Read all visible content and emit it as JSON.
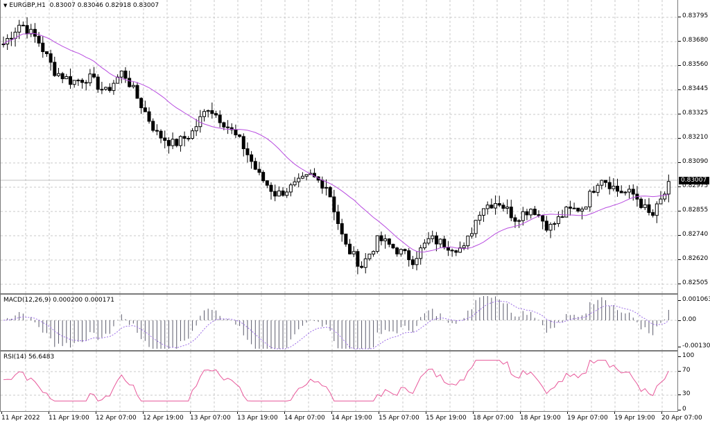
{
  "header": {
    "symbol_timeframe": "EURGBP,H1",
    "open": "0.83007",
    "high": "0.83046",
    "low": "0.82918",
    "close": "0.83007",
    "collapse_icon": "triangle-down-icon"
  },
  "price_scale": {
    "labels": [
      "0.83795",
      "0.83680",
      "0.83560",
      "0.83445",
      "0.83325",
      "0.83210",
      "0.83090",
      "0.82975",
      "0.82855",
      "0.82740",
      "0.82620",
      "0.82505"
    ],
    "current_price": "0.83007"
  },
  "macd": {
    "legend": "MACD(12,26,9) 0.000200 0.000171",
    "scale": [
      "0.001063",
      "0.00",
      "-0.001303"
    ]
  },
  "rsi": {
    "legend": "RSI(14) 56.6483",
    "scale": [
      "100",
      "70",
      "30",
      "0"
    ]
  },
  "time_axis": {
    "labels": [
      "11 Apr 2022",
      "11 Apr 19:00",
      "12 Apr 07:00",
      "12 Apr 19:00",
      "13 Apr 07:00",
      "13 Apr 19:00",
      "14 Apr 07:00",
      "14 Apr 19:00",
      "15 Apr 07:00",
      "15 Apr 19:00",
      "18 Apr 07:00",
      "18 Apr 19:00",
      "19 Apr 07:00",
      "19 Apr 19:00",
      "20 Apr 07:00"
    ]
  },
  "colors": {
    "ma_line": "#b84ce0",
    "rsi_line": "#e8589a",
    "macd_hist": "#5a5a6a",
    "macd_signal": "#9a6ae6",
    "grid": "#c8c8c8",
    "bull_body": "#ffffff",
    "bear_body": "#000000"
  },
  "chart_data": [
    {
      "type": "candlestick",
      "title": "EURGBP,H1",
      "ohlc_last": {
        "open": 0.83007,
        "high": 0.83046,
        "low": 0.82918,
        "close": 0.83007
      },
      "overlay": "Moving average (purple)",
      "ylim": [
        0.8245,
        0.8385
      ],
      "yticks": [
        0.83795,
        0.8368,
        0.8356,
        0.83445,
        0.83325,
        0.8321,
        0.8309,
        0.82975,
        0.82855,
        0.8274,
        0.8262,
        0.82505
      ],
      "xticks": [
        "11 Apr 2022",
        "11 Apr 19:00",
        "12 Apr 07:00",
        "12 Apr 19:00",
        "13 Apr 07:00",
        "13 Apr 19:00",
        "14 Apr 07:00",
        "14 Apr 19:00",
        "15 Apr 07:00",
        "15 Apr 19:00",
        "18 Apr 07:00",
        "18 Apr 19:00",
        "19 Apr 07:00",
        "19 Apr 19:00",
        "20 Apr 07:00"
      ],
      "approx_close_path": [
        0.8368,
        0.8378,
        0.837,
        0.8355,
        0.835,
        0.8352,
        0.8345,
        0.8355,
        0.834,
        0.8325,
        0.832,
        0.8325,
        0.8338,
        0.833,
        0.832,
        0.8305,
        0.8296,
        0.83,
        0.8305,
        0.83,
        0.8272,
        0.8262,
        0.8275,
        0.827,
        0.8265,
        0.8275,
        0.8272,
        0.827,
        0.829,
        0.8293,
        0.8285,
        0.829,
        0.828,
        0.8288,
        0.829,
        0.8305,
        0.8298,
        0.8296,
        0.8285,
        0.83
      ],
      "grid": true
    },
    {
      "type": "bar",
      "title": "MACD(12,26,9)",
      "values_last": {
        "main": 0.0002,
        "signal": 0.000171
      },
      "ylim": [
        -0.001303,
        0.001063
      ],
      "series": [
        {
          "name": "histogram",
          "type": "bar"
        },
        {
          "name": "signal",
          "type": "line",
          "style": "dotted"
        }
      ]
    },
    {
      "type": "line",
      "title": "RSI(14)",
      "value_last": 56.6483,
      "ylim": [
        0,
        100
      ],
      "levels": [
        30,
        70
      ]
    }
  ]
}
